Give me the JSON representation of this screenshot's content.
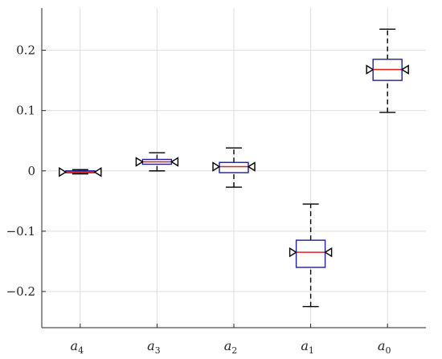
{
  "chart_data": {
    "type": "boxplot",
    "title": "",
    "xlabel": "",
    "ylabel": "",
    "ylim": [
      -0.26,
      0.27
    ],
    "grid": true,
    "y_ticks": [
      {
        "value": 0.2,
        "label": "0.2"
      },
      {
        "value": 0.1,
        "label": "0.1"
      },
      {
        "value": 0,
        "label": "0"
      },
      {
        "value": -0.1,
        "label": "−0.1"
      },
      {
        "value": -0.2,
        "label": "−0.2"
      }
    ],
    "categories": [
      {
        "base": "a",
        "sub": "4"
      },
      {
        "base": "a",
        "sub": "3"
      },
      {
        "base": "a",
        "sub": "2"
      },
      {
        "base": "a",
        "sub": "1"
      },
      {
        "base": "a",
        "sub": "0"
      }
    ],
    "boxes": [
      {
        "min": -0.005,
        "q1": -0.003,
        "median": -0.002,
        "q3": 0.0,
        "max": 0.002,
        "notch_low": -0.003,
        "notch_high": -0.001
      },
      {
        "min": 0.0,
        "q1": 0.011,
        "median": 0.015,
        "q3": 0.019,
        "max": 0.03,
        "notch_low": 0.013,
        "notch_high": 0.017
      },
      {
        "min": -0.027,
        "q1": -0.003,
        "median": 0.007,
        "q3": 0.014,
        "max": 0.038,
        "notch_low": 0.004,
        "notch_high": 0.01
      },
      {
        "min": -0.225,
        "q1": -0.16,
        "median": -0.135,
        "q3": -0.115,
        "max": -0.055,
        "notch_low": -0.145,
        "notch_high": -0.125
      },
      {
        "min": 0.097,
        "q1": 0.15,
        "median": 0.168,
        "q3": 0.185,
        "max": 0.235,
        "notch_low": 0.163,
        "notch_high": 0.173
      }
    ],
    "colors": {
      "box": "#1f1f8f",
      "median": "#d62728",
      "whisker": "#000000",
      "grid": "#dedede",
      "axis": "#262626"
    }
  }
}
